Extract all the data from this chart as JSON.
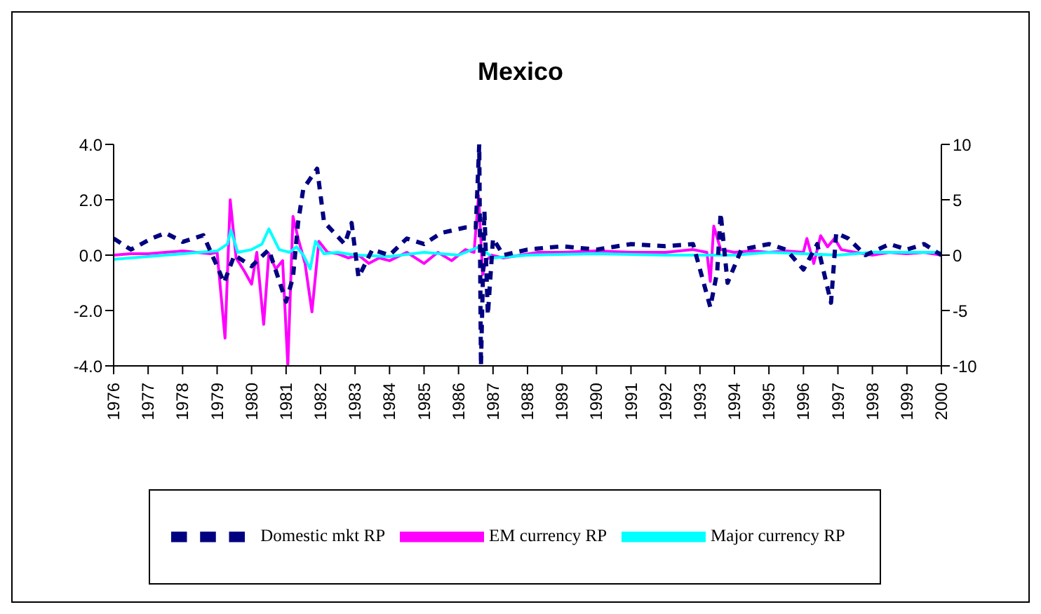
{
  "chart_data": {
    "type": "line",
    "title": "Mexico",
    "xlim": [
      1976,
      2000
    ],
    "xticks": [
      1976,
      1977,
      1978,
      1979,
      1980,
      1981,
      1982,
      1983,
      1984,
      1985,
      1986,
      1987,
      1988,
      1989,
      1990,
      1991,
      1992,
      1993,
      1994,
      1995,
      1996,
      1997,
      1998,
      1999,
      2000
    ],
    "ylim": [
      -4,
      4
    ],
    "yticks": [
      {
        "value": -4,
        "label": "-4.0"
      },
      {
        "value": -2,
        "label": "-2.0"
      },
      {
        "value": 0,
        "label": "0.0"
      },
      {
        "value": 2,
        "label": "2.0"
      },
      {
        "value": 4,
        "label": "4.0"
      }
    ],
    "y2lim": [
      -10,
      10
    ],
    "y2ticks": [
      -10,
      -5,
      0,
      5,
      10
    ],
    "legend": "bottom",
    "series": [
      {
        "name": "EM currency RP",
        "color": "#ff00ff",
        "line_style": "solid",
        "x": [
          1976,
          1976.5,
          1977,
          1977.5,
          1978,
          1978.4,
          1978.8,
          1979.0,
          1979.23,
          1979.38,
          1979.55,
          1979.8,
          1980.0,
          1980.15,
          1980.35,
          1980.5,
          1980.7,
          1980.9,
          1981.05,
          1981.2,
          1981.35,
          1981.55,
          1981.75,
          1981.95,
          1982.2,
          1982.5,
          1982.8,
          1983.1,
          1983.4,
          1983.7,
          1984.0,
          1984.5,
          1985.0,
          1985.4,
          1985.8,
          1986.2,
          1986.45,
          1986.58,
          1986.7,
          1986.8,
          1986.95,
          1987.3,
          1987.8,
          1988.3,
          1989,
          1990,
          1991,
          1992,
          1992.8,
          1993.2,
          1993.3,
          1993.4,
          1993.6,
          1994,
          1994.5,
          1995,
          1995.5,
          1996.0,
          1996.1,
          1996.3,
          1996.5,
          1996.7,
          1996.9,
          1997.1,
          1997.5,
          1998,
          1998.5,
          1999,
          1999.5,
          2000
        ],
        "values": [
          0,
          0.05,
          0.05,
          0.1,
          0.15,
          0.1,
          0.05,
          0.1,
          -3.0,
          2.0,
          -0.1,
          -0.6,
          -1.05,
          0.1,
          -2.5,
          0.05,
          -0.5,
          -0.2,
          -4.0,
          1.4,
          0.6,
          -0.3,
          -2.05,
          0.5,
          0.1,
          0.05,
          -0.1,
          0,
          -0.3,
          -0.1,
          -0.2,
          0.1,
          -0.3,
          0.1,
          -0.2,
          0.2,
          0.1,
          2.15,
          -0.7,
          -0.2,
          0,
          -0.1,
          0,
          0.1,
          0.1,
          0.15,
          0.1,
          0.1,
          0.2,
          0.1,
          -0.95,
          1.05,
          0.2,
          0.1,
          0.15,
          0.1,
          0.15,
          0.1,
          0.6,
          -0.3,
          0.7,
          0.3,
          0.6,
          0.2,
          0.1,
          0,
          0.1,
          0.05,
          0.1,
          0
        ]
      },
      {
        "name": "Major currency RP",
        "color": "#00ffff",
        "line_style": "solid",
        "x": [
          1976,
          1976.5,
          1977,
          1977.5,
          1978,
          1978.5,
          1979.0,
          1979.3,
          1979.4,
          1979.6,
          1980.0,
          1980.3,
          1980.5,
          1980.8,
          1981.1,
          1981.3,
          1981.5,
          1981.7,
          1981.85,
          1982.1,
          1982.5,
          1983,
          1984,
          1985,
          1986,
          1986.6,
          1987,
          1988,
          1990,
          1992,
          1994,
          1995,
          1996,
          1997,
          1998,
          1999,
          2000
        ],
        "values": [
          -0.15,
          -0.1,
          -0.05,
          0,
          0.05,
          0.1,
          0.15,
          0.4,
          0.9,
          0.1,
          0.2,
          0.4,
          0.95,
          0.2,
          0.1,
          0.3,
          0.0,
          -0.5,
          0.5,
          0.05,
          0.1,
          0,
          -0.05,
          0.1,
          0,
          0.3,
          -0.1,
          0,
          0.05,
          0,
          0,
          0.1,
          0.05,
          0,
          0.1,
          0.1,
          0.1
        ]
      },
      {
        "name": "Domestic mkt RP",
        "color": "#000080",
        "axis": "y2",
        "line_style": "dashed",
        "x": [
          1976,
          1976.5,
          1977.1,
          1977.5,
          1978,
          1978.6,
          1979.0,
          1979.2,
          1979.5,
          1980.0,
          1980.5,
          1981.0,
          1981.2,
          1981.35,
          1981.5,
          1981.9,
          1982.1,
          1982.4,
          1982.7,
          1982.9,
          1983.1,
          1983.5,
          1984,
          1984.5,
          1985,
          1985.5,
          1986.2,
          1986.5,
          1986.6,
          1986.65,
          1986.75,
          1986.85,
          1987.0,
          1987.3,
          1988,
          1989,
          1990,
          1991,
          1992,
          1992.8,
          1993.3,
          1993.5,
          1993.6,
          1993.8,
          1994.2,
          1995,
          1995.5,
          1996.0,
          1996.4,
          1996.8,
          1996.95,
          1997.3,
          1997.8,
          1998.5,
          1999,
          1999.5,
          2000
        ],
        "values": [
          1.5,
          0.5,
          1.5,
          2.0,
          1.2,
          1.8,
          -1.0,
          -2.5,
          0,
          -1.0,
          0.5,
          -4.2,
          -2.0,
          3.0,
          6.0,
          7.8,
          3.0,
          2.0,
          1.0,
          2.9,
          -2.0,
          0.5,
          0,
          1.5,
          1.0,
          2.0,
          2.5,
          2.5,
          10,
          -10,
          4.0,
          -5.4,
          1.5,
          0,
          0.5,
          0.8,
          0.5,
          1.0,
          0.8,
          1.0,
          -4.7,
          -1.5,
          3.8,
          -2.5,
          0.5,
          1.0,
          0.5,
          -1.3,
          1.0,
          -4.3,
          2.0,
          1.5,
          0,
          1.0,
          0.5,
          1.0,
          0
        ]
      }
    ]
  }
}
